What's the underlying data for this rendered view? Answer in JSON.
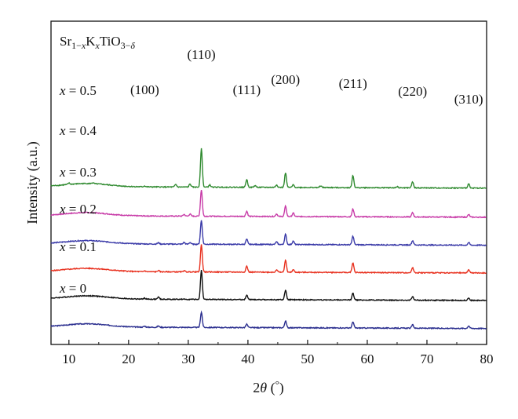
{
  "chart_data": {
    "type": "line",
    "title": "Sr1−xKxTiO3−δ",
    "title_parts": [
      "Sr",
      "1−",
      "x",
      "K",
      "x",
      "TiO",
      "3−",
      "δ"
    ],
    "xlabel": "2θ (°)",
    "xlabel_parts": [
      "2",
      "θ",
      " (",
      "°",
      ")"
    ],
    "ylabel": "Intensity (a.u.)",
    "xlim": [
      7,
      80
    ],
    "xticks": [
      10,
      20,
      30,
      40,
      50,
      60,
      70,
      80
    ],
    "yticks": [],
    "grid": false,
    "legend": "inline labels at left of each trace",
    "peak_labels": [
      {
        "text": "(100)",
        "x": 22.7
      },
      {
        "text": "(110)",
        "x": 32.2
      },
      {
        "text": "(111)",
        "x": 39.8
      },
      {
        "text": "(200)",
        "x": 46.3
      },
      {
        "text": "(211)",
        "x": 57.6
      },
      {
        "text": "(220)",
        "x": 67.6
      },
      {
        "text": "(310)",
        "x": 77.0
      }
    ],
    "series": [
      {
        "name": "x = 0",
        "x_value": "0",
        "color": "#2b2f8f",
        "baseline": 0.7,
        "peaks": [
          [
            22.7,
            1.2
          ],
          [
            25.0,
            1.5
          ],
          [
            32.2,
            18
          ],
          [
            39.8,
            4
          ],
          [
            46.3,
            8
          ],
          [
            57.6,
            7
          ],
          [
            67.6,
            4
          ],
          [
            77.0,
            3
          ]
        ]
      },
      {
        "name": "x = 0.1",
        "x_value": "0.1",
        "color": "#111111",
        "baseline": 11.2,
        "peaks": [
          [
            22.7,
            1.2
          ],
          [
            25.0,
            2.5
          ],
          [
            32.2,
            34
          ],
          [
            39.8,
            5
          ],
          [
            46.3,
            11
          ],
          [
            57.6,
            8
          ],
          [
            67.6,
            4
          ],
          [
            77.0,
            3
          ]
        ]
      },
      {
        "name": "x = 0.2",
        "x_value": "0.2",
        "color": "#e8311f",
        "baseline": 21.5,
        "peaks": [
          [
            22.7,
            1
          ],
          [
            25.0,
            1.5
          ],
          [
            29.3,
            1.5
          ],
          [
            32.2,
            32
          ],
          [
            39.8,
            7
          ],
          [
            44.8,
            3
          ],
          [
            46.3,
            14
          ],
          [
            47.6,
            3
          ],
          [
            57.6,
            11
          ],
          [
            67.6,
            6
          ],
          [
            77.0,
            4
          ]
        ]
      },
      {
        "name": "x = 0.3",
        "x_value": "0.3",
        "color": "#3a3aa8",
        "baseline": 31.9,
        "peaks": [
          [
            25.0,
            1.5
          ],
          [
            29.3,
            2
          ],
          [
            30.3,
            2
          ],
          [
            32.2,
            28
          ],
          [
            39.8,
            6
          ],
          [
            44.8,
            3
          ],
          [
            46.3,
            12
          ],
          [
            47.6,
            4
          ],
          [
            57.6,
            10
          ],
          [
            67.6,
            5
          ],
          [
            77.0,
            3
          ]
        ]
      },
      {
        "name": "x = 0.4",
        "x_value": "0.4",
        "color": "#c83ca8",
        "baseline": 42.4,
        "peaks": [
          [
            29.3,
            2
          ],
          [
            30.3,
            2.5
          ],
          [
            32.2,
            31
          ],
          [
            39.8,
            6
          ],
          [
            44.8,
            3
          ],
          [
            46.3,
            12
          ],
          [
            47.6,
            4
          ],
          [
            57.6,
            9
          ],
          [
            67.6,
            5
          ],
          [
            77.0,
            3
          ]
        ]
      },
      {
        "name": "x = 0.5",
        "x_value": "0.5",
        "color": "#2f8a2f",
        "baseline": 53.3,
        "peaks": [
          [
            10.0,
            1.5
          ],
          [
            14.0,
            1
          ],
          [
            22.7,
            1
          ],
          [
            27.9,
            3
          ],
          [
            30.3,
            3.5
          ],
          [
            32.2,
            45
          ],
          [
            33.6,
            2.5
          ],
          [
            39.8,
            9
          ],
          [
            41.2,
            2
          ],
          [
            44.8,
            3
          ],
          [
            46.3,
            17
          ],
          [
            47.6,
            3
          ],
          [
            52.2,
            2
          ],
          [
            57.6,
            14
          ],
          [
            65.0,
            1.5
          ],
          [
            67.6,
            7
          ],
          [
            77.0,
            5
          ]
        ]
      }
    ]
  }
}
